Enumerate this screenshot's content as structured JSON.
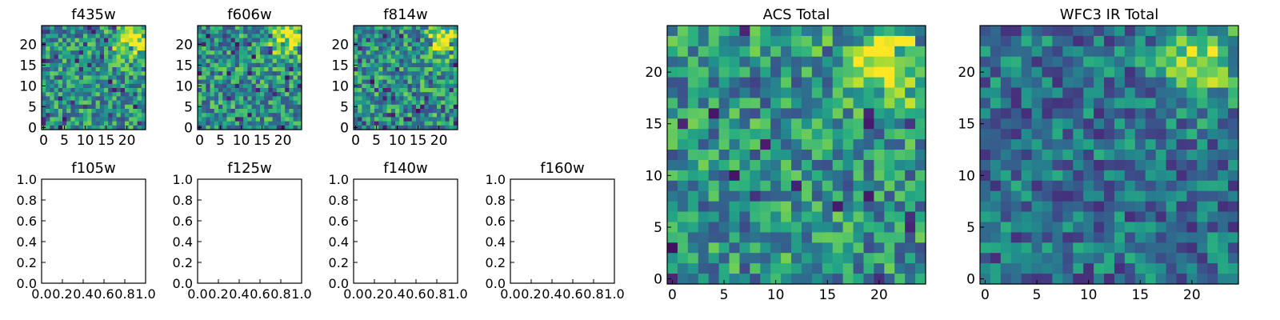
{
  "figure": {
    "panels": [
      {
        "title": "f435w",
        "type": "heatmap",
        "filled": true,
        "seed": 11,
        "yticks": [
          "0",
          "5",
          "10",
          "15",
          "20"
        ],
        "xticks": [
          "0",
          "5",
          "10",
          "15",
          "20"
        ]
      },
      {
        "title": "f606w",
        "type": "heatmap",
        "filled": true,
        "seed": 22,
        "yticks": [
          "0",
          "5",
          "10",
          "15",
          "20"
        ],
        "xticks": [
          "0",
          "5",
          "10",
          "15",
          "20"
        ]
      },
      {
        "title": "f814w",
        "type": "heatmap",
        "filled": true,
        "seed": 33,
        "yticks": [
          "0",
          "5",
          "10",
          "15",
          "20"
        ],
        "xticks": [
          "0",
          "5",
          "10",
          "15",
          "20"
        ]
      },
      {
        "title": "f105w",
        "type": "empty",
        "filled": false,
        "yticks": [
          "0.0",
          "0.2",
          "0.4",
          "0.6",
          "0.8",
          "1.0"
        ],
        "xticks": [
          "0.0",
          "0.2",
          "0.4",
          "0.6",
          "0.8",
          "1.0"
        ]
      },
      {
        "title": "f125w",
        "type": "empty",
        "filled": false,
        "yticks": [
          "0.0",
          "0.2",
          "0.4",
          "0.6",
          "0.8",
          "1.0"
        ],
        "xticks": [
          "0.0",
          "0.2",
          "0.4",
          "0.6",
          "0.8",
          "1.0"
        ]
      },
      {
        "title": "f140w",
        "type": "empty",
        "filled": false,
        "yticks": [
          "0.0",
          "0.2",
          "0.4",
          "0.6",
          "0.8",
          "1.0"
        ],
        "xticks": [
          "0.0",
          "0.2",
          "0.4",
          "0.6",
          "0.8",
          "1.0"
        ]
      },
      {
        "title": "f160w",
        "type": "empty",
        "filled": false,
        "yticks": [
          "0.0",
          "0.2",
          "0.4",
          "0.6",
          "0.8",
          "1.0"
        ],
        "xticks": [
          "0.0",
          "0.2",
          "0.4",
          "0.6",
          "0.8",
          "1.0"
        ]
      },
      {
        "title": "ACS Total",
        "type": "heatmap",
        "filled": true,
        "seed": 44,
        "yticks": [
          "0",
          "5",
          "10",
          "15",
          "20"
        ],
        "xticks": [
          "0",
          "5",
          "10",
          "15",
          "20"
        ]
      },
      {
        "title": "WFC3 IR Total",
        "type": "heatmap",
        "filled": true,
        "seed": 55,
        "darker": true,
        "yticks": [
          "0",
          "5",
          "10",
          "15",
          "20"
        ],
        "xticks": [
          "0",
          "5",
          "10",
          "15",
          "20"
        ]
      }
    ]
  },
  "chart_data": [
    {
      "type": "heatmap",
      "title": "f435w",
      "grid_size": [
        25,
        25
      ],
      "xlim": [
        0,
        24
      ],
      "ylim": [
        0,
        24
      ],
      "colormap": "viridis"
    },
    {
      "type": "heatmap",
      "title": "f606w",
      "grid_size": [
        25,
        25
      ],
      "xlim": [
        0,
        24
      ],
      "ylim": [
        0,
        24
      ],
      "colormap": "viridis"
    },
    {
      "type": "heatmap",
      "title": "f814w",
      "grid_size": [
        25,
        25
      ],
      "xlim": [
        0,
        24
      ],
      "ylim": [
        0,
        24
      ],
      "colormap": "viridis"
    },
    {
      "type": "scatter",
      "title": "f105w",
      "xlim": [
        0,
        1
      ],
      "ylim": [
        0,
        1
      ],
      "series": []
    },
    {
      "type": "scatter",
      "title": "f125w",
      "xlim": [
        0,
        1
      ],
      "ylim": [
        0,
        1
      ],
      "series": []
    },
    {
      "type": "scatter",
      "title": "f140w",
      "xlim": [
        0,
        1
      ],
      "ylim": [
        0,
        1
      ],
      "series": []
    },
    {
      "type": "scatter",
      "title": "f160w",
      "xlim": [
        0,
        1
      ],
      "ylim": [
        0,
        1
      ],
      "series": []
    },
    {
      "type": "heatmap",
      "title": "ACS Total",
      "grid_size": [
        25,
        25
      ],
      "xlim": [
        0,
        24
      ],
      "ylim": [
        0,
        24
      ],
      "colormap": "viridis"
    },
    {
      "type": "heatmap",
      "title": "WFC3 IR Total",
      "grid_size": [
        25,
        25
      ],
      "xlim": [
        0,
        24
      ],
      "ylim": [
        0,
        24
      ],
      "colormap": "viridis"
    }
  ]
}
